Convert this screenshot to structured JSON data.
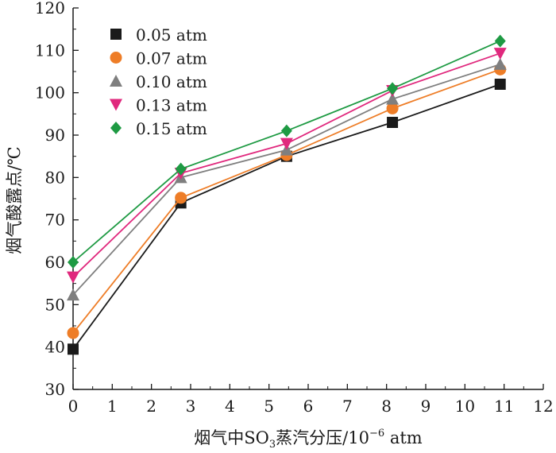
{
  "chart_data": {
    "type": "line",
    "title": "",
    "xlabel_parts": {
      "main": "烟气中SO",
      "sub": "3",
      "after": "蒸汽分压/10",
      "sup": "−6",
      "unit": " atm"
    },
    "ylabel": "烟气酸露点/℃",
    "xlim": [
      0,
      12
    ],
    "ylim": [
      30,
      120
    ],
    "xticks": [
      0,
      1,
      2,
      3,
      4,
      5,
      6,
      7,
      8,
      9,
      10,
      11,
      12
    ],
    "yticks": [
      30,
      40,
      50,
      60,
      70,
      80,
      90,
      100,
      110,
      120
    ],
    "grid": false,
    "legend_position": "top-left",
    "x": [
      0,
      2.75,
      5.45,
      8.15,
      10.9
    ],
    "series": [
      {
        "name": "0.05 atm",
        "marker": "square",
        "color": "#1a1a1a",
        "values": [
          39.5,
          74,
          85,
          93,
          102
        ]
      },
      {
        "name": "0.07 atm",
        "marker": "circle",
        "color": "#ee7d27",
        "values": [
          43.3,
          75.2,
          85.3,
          96.3,
          105.5
        ]
      },
      {
        "name": "0.10 atm",
        "marker": "triangle-up",
        "color": "#7f7f7f",
        "values": [
          52.3,
          80,
          86.5,
          98.5,
          106.7
        ]
      },
      {
        "name": "0.13 atm",
        "marker": "triangle-down",
        "color": "#e0287d",
        "values": [
          56.5,
          81,
          88,
          100.5,
          109.3
        ]
      },
      {
        "name": "0.15 atm",
        "marker": "diamond",
        "color": "#1e9a43",
        "values": [
          60,
          82,
          91,
          101,
          112.2
        ]
      }
    ]
  }
}
